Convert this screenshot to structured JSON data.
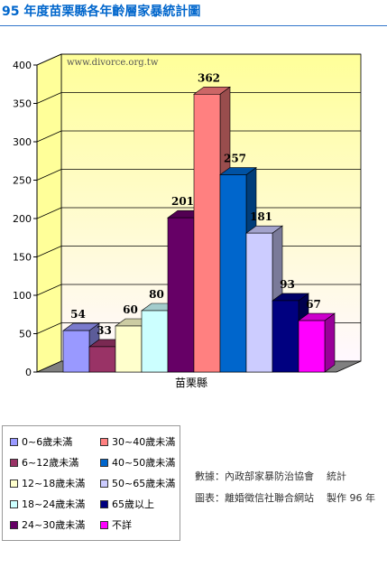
{
  "title": "95 年度苗栗縣各年齡層家暴統計圖",
  "watermark": "www.divorce.org.tw",
  "chart_data": {
    "type": "bar",
    "title": "95 年度苗栗縣各年齡層家暴統計圖",
    "categories": [
      "苗栗縣"
    ],
    "series": [
      {
        "name": "0~6歲未滿",
        "values": [
          54
        ],
        "color": "#9999ff"
      },
      {
        "name": "6~12歲未滿",
        "values": [
          33
        ],
        "color": "#993366"
      },
      {
        "name": "12~18歲未滿",
        "values": [
          60
        ],
        "color": "#ffffcc"
      },
      {
        "name": "18~24歲未滿",
        "values": [
          80
        ],
        "color": "#ccffff"
      },
      {
        "name": "24~30歲未滿",
        "values": [
          201
        ],
        "color": "#660066"
      },
      {
        "name": "30~40歲未滿",
        "values": [
          362
        ],
        "color": "#ff8080"
      },
      {
        "name": "40~50歲未滿",
        "values": [
          257
        ],
        "color": "#0066cc"
      },
      {
        "name": "50~65歲未滿",
        "values": [
          181
        ],
        "color": "#ccccff"
      },
      {
        "name": "65歲以上",
        "values": [
          93
        ],
        "color": "#000080"
      },
      {
        "name": "不詳",
        "values": [
          67
        ],
        "color": "#ff00ff"
      }
    ],
    "yticks": [
      0,
      50,
      100,
      150,
      200,
      250,
      300,
      350,
      400
    ],
    "ylim": [
      0,
      400
    ],
    "xlabel": "",
    "ylabel": "",
    "grid": true,
    "legend_position": "bottom-left"
  },
  "credits": {
    "line1": "數據：內政部家暴防治協會    統計",
    "line2": "圖表：離婚徵信社聯合網站    製作 96 年"
  }
}
